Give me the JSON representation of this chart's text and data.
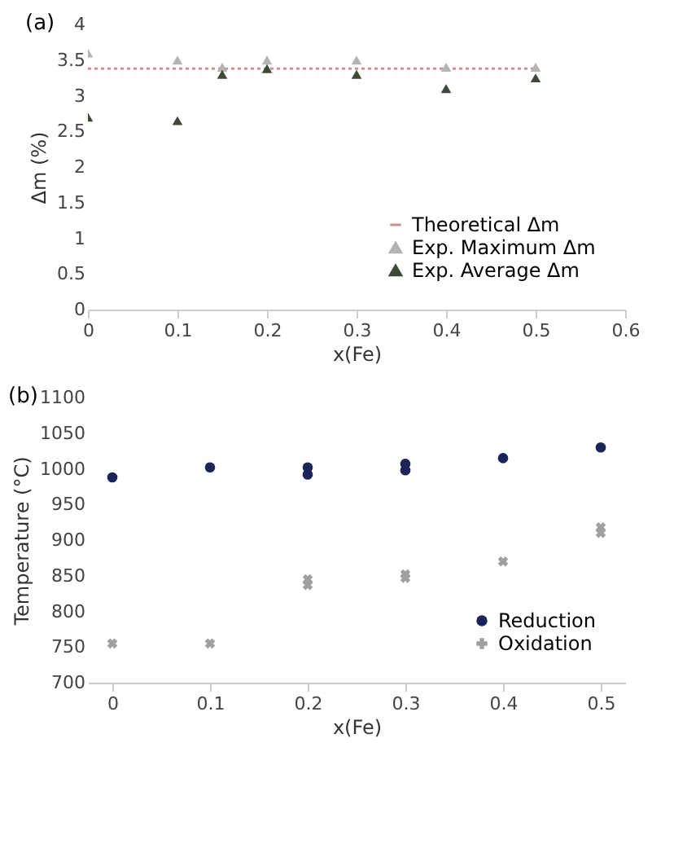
{
  "chart_data": [
    {
      "type": "scatter",
      "title": "(a)",
      "xlabel": "x(Fe)",
      "ylabel": "Δm (%)",
      "xlim": [
        0,
        0.6
      ],
      "ylim": [
        0,
        4
      ],
      "xticks": [
        0,
        0.1,
        0.2,
        0.3,
        0.4,
        0.5,
        0.6
      ],
      "yticks": [
        0,
        0.5,
        1,
        1.5,
        2,
        2.5,
        3,
        3.5,
        4
      ],
      "grid": false,
      "legend": "bottom right",
      "series": [
        {
          "name": "Theoretical Δm",
          "type": "line",
          "color": "#d09090",
          "line_style": "dotted",
          "marker": "none",
          "x": [
            0,
            0.5
          ],
          "values": [
            3.38,
            3.38
          ]
        },
        {
          "name": "Exp. Maximum Δm",
          "color": "#b4b4b4",
          "marker": "triangle",
          "x": [
            0,
            0.1,
            0.15,
            0.2,
            0.3,
            0.4,
            0.5
          ],
          "values": [
            3.6,
            3.5,
            3.4,
            3.5,
            3.5,
            3.4,
            3.4
          ]
        },
        {
          "name": "Exp. Average Δm",
          "color": "#3d4a35",
          "marker": "triangle",
          "x": [
            0,
            0.1,
            0.15,
            0.2,
            0.3,
            0.4,
            0.5
          ],
          "values": [
            2.7,
            2.65,
            3.3,
            3.38,
            3.3,
            3.1,
            3.25
          ]
        }
      ]
    },
    {
      "type": "scatter",
      "title": "(b)",
      "xlabel": "x(Fe)",
      "ylabel": "Temperature (°C)",
      "xlim": [
        -0.025,
        0.525
      ],
      "ylim": [
        700,
        1100
      ],
      "xticks": [
        0,
        0.1,
        0.2,
        0.3,
        0.4,
        0.5
      ],
      "yticks": [
        700,
        750,
        800,
        850,
        900,
        950,
        1000,
        1050,
        1100
      ],
      "grid": false,
      "legend": "bottom right",
      "series": [
        {
          "name": "Reduction",
          "color": "#1a2458",
          "marker": "circle",
          "x": [
            0,
            0.1,
            0.2,
            0.2,
            0.3,
            0.3,
            0.4,
            0.5
          ],
          "values": [
            988,
            1002,
            1002,
            992,
            1007,
            998,
            1015,
            1030
          ]
        },
        {
          "name": "Oxidation",
          "color": "#a0a0a0",
          "marker": "cross",
          "x": [
            0,
            0.1,
            0.2,
            0.2,
            0.3,
            0.3,
            0.4,
            0.5,
            0.5
          ],
          "values": [
            755,
            755,
            845,
            837,
            852,
            847,
            870,
            918,
            910
          ]
        }
      ]
    }
  ]
}
